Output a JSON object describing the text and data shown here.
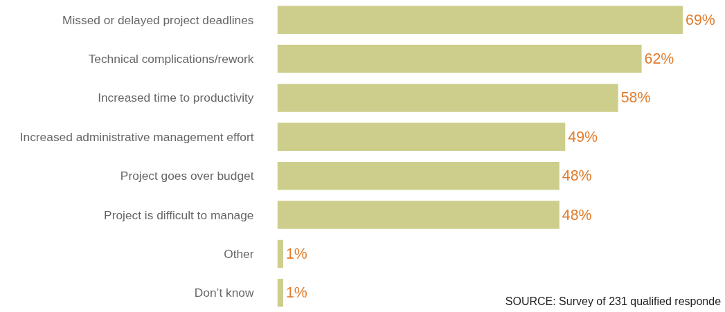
{
  "chart_data": {
    "type": "bar",
    "orientation": "horizontal",
    "categories": [
      "Missed or delayed project deadlines",
      "Technical complications/rework",
      "Increased time to productivity",
      "Increased administrative management effort",
      "Project goes over budget",
      "Project is difficult to manage",
      "Other",
      "Don’t know"
    ],
    "values": [
      69,
      62,
      58,
      49,
      48,
      48,
      1,
      1
    ],
    "value_labels": [
      "69%",
      "62%",
      "58%",
      "49%",
      "48%",
      "48%",
      "1%",
      "1%"
    ],
    "color": "#cdce8c",
    "grid": false,
    "annotations": [
      "SOURCE:  Survey of 231 qualified responde"
    ]
  }
}
